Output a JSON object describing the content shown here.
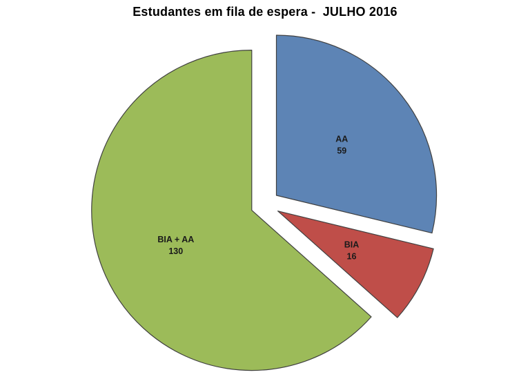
{
  "chart_data": {
    "type": "pie",
    "title": "Estudantes em fila de espera -  JULHO 2016",
    "slices": [
      {
        "label": "AA",
        "value": 59,
        "color": "#5d84b5"
      },
      {
        "label": "BIA",
        "value": 16,
        "color": "#bf4e49"
      },
      {
        "label": "BIA + AA",
        "value": 130,
        "color": "#9cbb59"
      }
    ],
    "total": 205,
    "start_angle_deg": 0,
    "direction": "clockwise",
    "exploded": true,
    "legend": "none",
    "label_format": "name_and_value",
    "background": "#ffffff",
    "outline_color": "#404040",
    "text_color": "#1a1a1a"
  }
}
